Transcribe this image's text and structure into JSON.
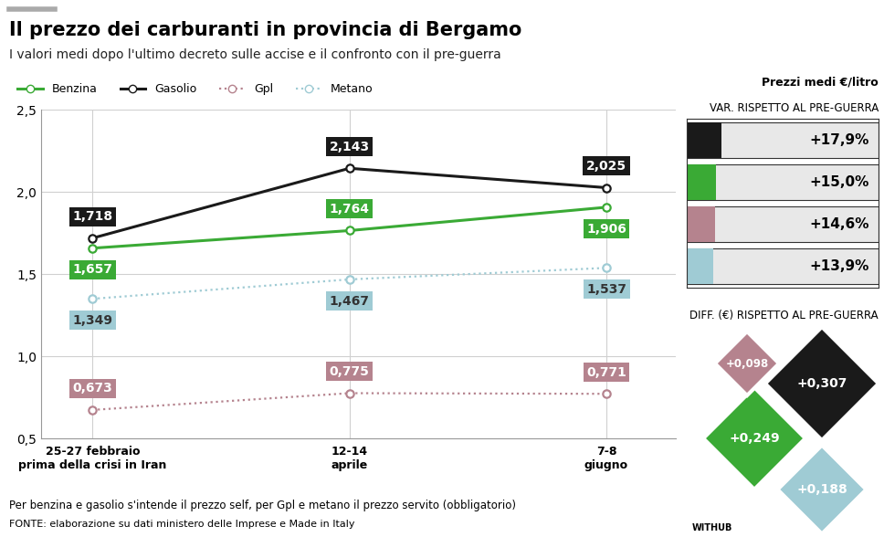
{
  "page": {
    "title": "Il prezzo dei carburanti in provincia di Bergamo",
    "subtitle": "I valori medi dopo l'ultimo decreto sulle accise e il confronto con il pre-guerra",
    "unit_label": "Prezzi medi €/litro",
    "note": "Per benzina e gasolio s'intende il prezzo self, per Gpl e metano il prezzo servito (obbligatorio)",
    "source": "FONTE: elaborazione su dati ministero delle Imprese e Made in Italy",
    "credit": "WITHUB"
  },
  "chart_data": [
    {
      "type": "line",
      "categories": [
        "25-27 febbraio\nprima della crisi in Iran",
        "12-14\naprile",
        "7-8\ngiugno"
      ],
      "series": [
        {
          "name": "Benzina",
          "color": "#3aaa35",
          "marker": "o",
          "line_style": "solid",
          "values": [
            1.657,
            1.764,
            1.906
          ],
          "value_labels": [
            "1,657",
            "1,764",
            "1,906"
          ]
        },
        {
          "name": "Gasolio",
          "color": "#1a1a1a",
          "marker": "o",
          "line_style": "solid",
          "values": [
            1.718,
            2.143,
            2.025
          ],
          "value_labels": [
            "1,718",
            "2,143",
            "2,025"
          ]
        },
        {
          "name": "Gpl",
          "color": "#b5838e",
          "marker": "o",
          "line_style": "dotted",
          "values": [
            0.673,
            0.775,
            0.771
          ],
          "value_labels": [
            "0,673",
            "0,775",
            "0,771"
          ]
        },
        {
          "name": "Metano",
          "color": "#9fcbd4",
          "marker": "o",
          "line_style": "dotted",
          "values": [
            1.349,
            1.467,
            1.537
          ],
          "value_labels": [
            "1,349",
            "1,467",
            "1,537"
          ]
        }
      ],
      "ylim": [
        0.5,
        2.5
      ],
      "yticks": [
        {
          "value": 0.5,
          "label": "0,5"
        },
        {
          "value": 1.0,
          "label": "1,0"
        },
        {
          "value": 1.5,
          "label": "1,5"
        },
        {
          "value": 2.0,
          "label": "2,0"
        },
        {
          "value": 2.5,
          "label": "2,5"
        }
      ],
      "grid": true,
      "legend": "upper left",
      "data_labels": true
    },
    {
      "type": "bar",
      "orientation": "horizontal",
      "title": "VAR. RISPETTO AL PRE-GUERRA",
      "categories": [
        null,
        null,
        null,
        null
      ],
      "values": [
        17.9,
        15.0,
        14.6,
        13.9
      ],
      "value_labels": [
        "+17,9%",
        "+15,0%",
        "+14,6%",
        "+13,9%"
      ],
      "colors": [
        "#1a1a1a",
        "#3aaa35",
        "#b5838e",
        "#9fcbd4"
      ],
      "xlim": [
        0,
        100
      ],
      "tick_labels": false,
      "data_labels": true
    },
    {
      "type": "diamond",
      "title": "DIFF. (€) RISPETTO AL PRE-GUERRA",
      "values": [
        0.307,
        0.249,
        0.098,
        0.188
      ],
      "value_labels": [
        "+0,307",
        "+0,249",
        "+0,098",
        "+0,188"
      ],
      "colors": [
        "#1a1a1a",
        "#3aaa35",
        "#b5838e",
        "#9fcbd4"
      ],
      "data_labels": true
    }
  ]
}
